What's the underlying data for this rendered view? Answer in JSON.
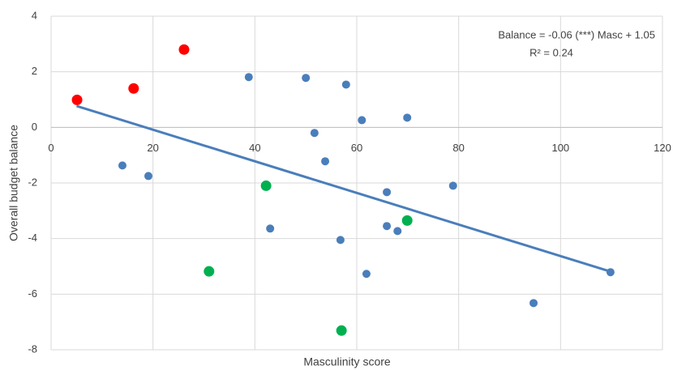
{
  "chart_data": {
    "type": "scatter",
    "x_label": "Masculinity score",
    "y_label": "Overall budget balance",
    "annotations": [
      "Balance = -0.06 (***)  Masc + 1.05",
      "R² = 0.24"
    ],
    "xlim": [
      0,
      120
    ],
    "xticks": [
      0,
      20,
      40,
      60,
      80,
      100,
      120
    ],
    "ylim": [
      -8,
      4
    ],
    "yticks": [
      -8,
      -6,
      -4,
      -2,
      0,
      2,
      4
    ],
    "grid": true,
    "series": [
      {
        "color": "#4a7ebb",
        "x": [
          14.0,
          19.1,
          38.8,
          50.0,
          57.9,
          51.7,
          61.0,
          69.9,
          53.8,
          65.9,
          78.9,
          43.0,
          56.8,
          65.9,
          68.0,
          61.9,
          94.7,
          109.8
        ],
        "values": [
          -1.37,
          -1.75,
          1.81,
          1.78,
          1.54,
          -0.2,
          0.26,
          0.35,
          -1.22,
          -2.33,
          -2.1,
          -3.64,
          -4.05,
          -3.55,
          -3.73,
          -5.27,
          -6.32,
          -5.21
        ]
      },
      {
        "color": "#ff0000",
        "x": [
          5.1,
          16.2,
          26.1
        ],
        "values": [
          0.99,
          1.4,
          2.8
        ]
      },
      {
        "color": "#00b050",
        "x": [
          42.2,
          31.0,
          69.9,
          57.0
        ],
        "values": [
          -2.1,
          -5.18,
          -3.35,
          -7.31
        ]
      }
    ],
    "trendline": {
      "color": "#4a7ebb",
      "x": [
        5,
        110
      ],
      "values": [
        0.77,
        -5.2
      ]
    }
  }
}
